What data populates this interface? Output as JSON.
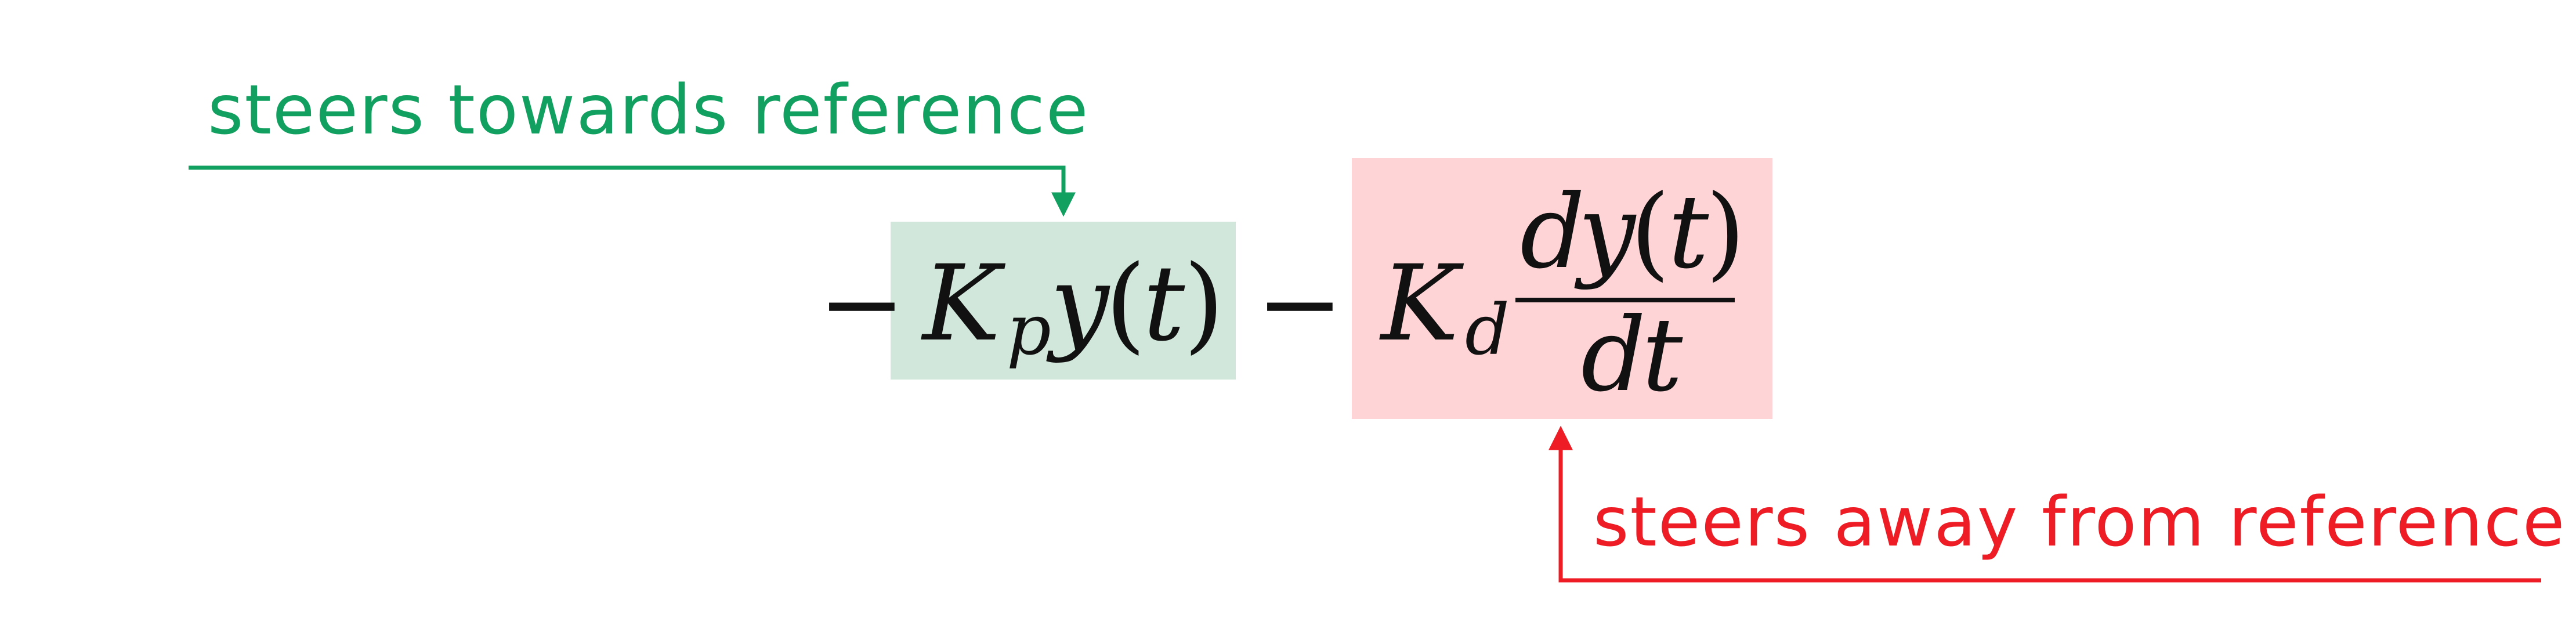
{
  "colors": {
    "green": "#12a060",
    "green_box": "#d1e7db",
    "red": "#ee1c24",
    "red_box": "#ffd4d6",
    "text": "#111111"
  },
  "annotations": {
    "top": "steers towards reference",
    "bottom": "steers away from reference"
  },
  "equation": {
    "minus_1": "−",
    "kp_letter": "K",
    "kp_sub": "p",
    "kp_y": "y",
    "kp_lparen": "(",
    "kp_t": "t",
    "kp_rparen": ")",
    "minus_2": "−",
    "kd_letter": "K",
    "kd_sub": "d",
    "num_d": "d",
    "num_y": "y",
    "num_lparen": "(",
    "num_t": "t",
    "num_rparen": ")",
    "den_d": "d",
    "den_t": "t"
  }
}
